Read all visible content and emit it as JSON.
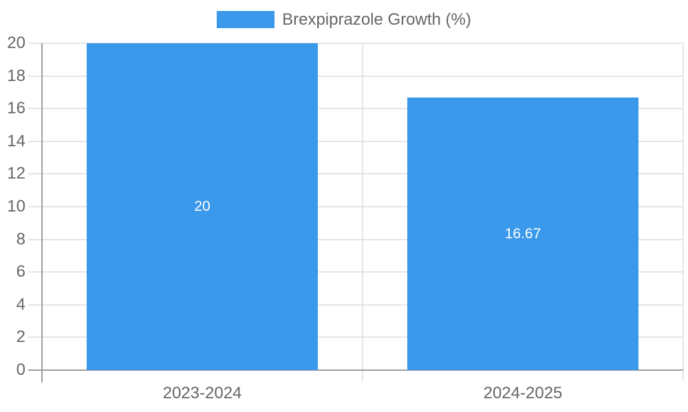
{
  "chart_data": {
    "type": "bar",
    "title": "",
    "series_label": "Brexpiprazole Growth (%)",
    "categories": [
      "2023-2024",
      "2024-2025"
    ],
    "values": [
      20,
      16.67
    ],
    "value_labels": [
      "20",
      "16.67"
    ],
    "xlabel": "",
    "ylabel": "",
    "ylim": [
      0,
      20
    ],
    "ytick_step": 2,
    "ytick_labels": [
      "0",
      "2",
      "4",
      "6",
      "8",
      "10",
      "12",
      "14",
      "16",
      "18",
      "20"
    ],
    "grid": true,
    "legend_position": "top",
    "colors": {
      "bar": "#3b99ec",
      "value_label_text": "#ffffff",
      "axis_text": "#666666",
      "gridline": "#e5e5e5",
      "axis_line": "#9e9e9e",
      "background": "#ffffff"
    }
  }
}
